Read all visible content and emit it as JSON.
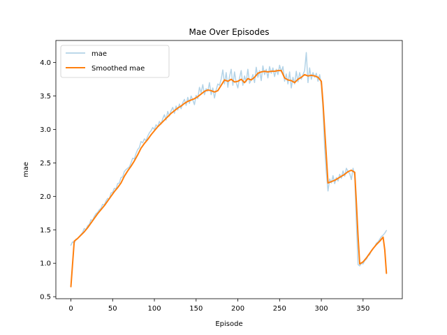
{
  "chart_data": {
    "type": "line",
    "title": "Mae Over Episodes",
    "xlabel": "Episode",
    "ylabel": "mae",
    "xlim": [
      -18,
      397
    ],
    "ylim": [
      0.47,
      4.33
    ],
    "xticks": [
      0,
      50,
      100,
      150,
      200,
      250,
      300,
      350
    ],
    "yticks": [
      0.5,
      1.0,
      1.5,
      2.0,
      2.5,
      3.0,
      3.5,
      4.0
    ],
    "ytick_labels": [
      "0.5",
      "1.0",
      "1.5",
      "2.0",
      "2.5",
      "3.0",
      "3.5",
      "4.0"
    ],
    "grid": false,
    "legend_position": "top-left",
    "series": [
      {
        "name": "mae",
        "color": "#a6cbe3",
        "style": "thin-translucent",
        "points": [
          [
            0,
            1.27
          ],
          [
            2,
            1.32
          ],
          [
            4,
            1.3
          ],
          [
            6,
            1.36
          ],
          [
            8,
            1.37
          ],
          [
            10,
            1.4
          ],
          [
            12,
            1.43
          ],
          [
            14,
            1.46
          ],
          [
            16,
            1.52
          ],
          [
            18,
            1.5
          ],
          [
            20,
            1.56
          ],
          [
            22,
            1.58
          ],
          [
            24,
            1.65
          ],
          [
            26,
            1.64
          ],
          [
            28,
            1.7
          ],
          [
            30,
            1.74
          ],
          [
            32,
            1.76
          ],
          [
            34,
            1.8
          ],
          [
            36,
            1.82
          ],
          [
            38,
            1.88
          ],
          [
            40,
            1.87
          ],
          [
            42,
            1.93
          ],
          [
            44,
            1.97
          ],
          [
            46,
            1.96
          ],
          [
            48,
            2.05
          ],
          [
            50,
            2.06
          ],
          [
            52,
            2.12
          ],
          [
            54,
            2.11
          ],
          [
            56,
            2.19
          ],
          [
            58,
            2.2
          ],
          [
            60,
            2.28
          ],
          [
            62,
            2.29
          ],
          [
            64,
            2.37
          ],
          [
            66,
            2.4
          ],
          [
            68,
            2.42
          ],
          [
            70,
            2.44
          ],
          [
            72,
            2.5
          ],
          [
            74,
            2.57
          ],
          [
            76,
            2.56
          ],
          [
            78,
            2.64
          ],
          [
            80,
            2.7
          ],
          [
            82,
            2.73
          ],
          [
            84,
            2.82
          ],
          [
            86,
            2.8
          ],
          [
            88,
            2.86
          ],
          [
            90,
            2.83
          ],
          [
            92,
            2.9
          ],
          [
            94,
            2.95
          ],
          [
            96,
            2.98
          ],
          [
            98,
            3.03
          ],
          [
            100,
            3.0
          ],
          [
            102,
            3.07
          ],
          [
            104,
            3.04
          ],
          [
            106,
            3.12
          ],
          [
            108,
            3.08
          ],
          [
            110,
            3.16
          ],
          [
            112,
            3.22
          ],
          [
            114,
            3.14
          ],
          [
            116,
            3.27
          ],
          [
            118,
            3.2
          ],
          [
            120,
            3.28
          ],
          [
            122,
            3.33
          ],
          [
            124,
            3.24
          ],
          [
            126,
            3.35
          ],
          [
            128,
            3.29
          ],
          [
            130,
            3.38
          ],
          [
            132,
            3.31
          ],
          [
            134,
            3.4
          ],
          [
            136,
            3.45
          ],
          [
            138,
            3.36
          ],
          [
            140,
            3.48
          ],
          [
            142,
            3.39
          ],
          [
            144,
            3.5
          ],
          [
            146,
            3.44
          ],
          [
            148,
            3.37
          ],
          [
            150,
            3.51
          ],
          [
            152,
            3.46
          ],
          [
            154,
            3.63
          ],
          [
            156,
            3.55
          ],
          [
            158,
            3.67
          ],
          [
            160,
            3.52
          ],
          [
            162,
            3.61
          ],
          [
            164,
            3.57
          ],
          [
            166,
            3.7
          ],
          [
            168,
            3.52
          ],
          [
            170,
            3.62
          ],
          [
            172,
            3.47
          ],
          [
            174,
            3.59
          ],
          [
            176,
            3.68
          ],
          [
            178,
            3.66
          ],
          [
            180,
            3.75
          ],
          [
            182,
            3.89
          ],
          [
            184,
            3.68
          ],
          [
            186,
            3.85
          ],
          [
            188,
            3.63
          ],
          [
            190,
            3.79
          ],
          [
            192,
            3.9
          ],
          [
            194,
            3.66
          ],
          [
            196,
            3.86
          ],
          [
            198,
            3.7
          ],
          [
            200,
            3.62
          ],
          [
            202,
            3.77
          ],
          [
            204,
            3.88
          ],
          [
            206,
            3.66
          ],
          [
            208,
            3.8
          ],
          [
            210,
            3.71
          ],
          [
            212,
            3.9
          ],
          [
            214,
            3.69
          ],
          [
            216,
            3.74
          ],
          [
            218,
            3.82
          ],
          [
            220,
            3.7
          ],
          [
            222,
            3.93
          ],
          [
            224,
            3.78
          ],
          [
            226,
            3.88
          ],
          [
            228,
            3.73
          ],
          [
            230,
            3.95
          ],
          [
            232,
            3.82
          ],
          [
            234,
            3.9
          ],
          [
            236,
            3.77
          ],
          [
            238,
            3.94
          ],
          [
            240,
            3.84
          ],
          [
            242,
            3.92
          ],
          [
            244,
            3.79
          ],
          [
            246,
            3.9
          ],
          [
            248,
            3.82
          ],
          [
            250,
            3.96
          ],
          [
            252,
            3.86
          ],
          [
            254,
            3.94
          ],
          [
            256,
            3.72
          ],
          [
            258,
            3.83
          ],
          [
            260,
            3.68
          ],
          [
            262,
            3.86
          ],
          [
            264,
            3.62
          ],
          [
            266,
            3.78
          ],
          [
            268,
            3.68
          ],
          [
            270,
            3.87
          ],
          [
            272,
            3.71
          ],
          [
            274,
            3.85
          ],
          [
            276,
            3.75
          ],
          [
            278,
            3.82
          ],
          [
            280,
            3.88
          ],
          [
            282,
            4.15
          ],
          [
            284,
            3.7
          ],
          [
            286,
            3.92
          ],
          [
            288,
            3.75
          ],
          [
            290,
            3.85
          ],
          [
            292,
            3.78
          ],
          [
            294,
            3.84
          ],
          [
            296,
            3.72
          ],
          [
            298,
            3.82
          ],
          [
            300,
            3.66
          ],
          [
            302,
            3.3
          ],
          [
            304,
            2.72
          ],
          [
            306,
            2.35
          ],
          [
            308,
            2.08
          ],
          [
            310,
            2.26
          ],
          [
            312,
            2.2
          ],
          [
            314,
            2.31
          ],
          [
            316,
            2.19
          ],
          [
            318,
            2.28
          ],
          [
            320,
            2.23
          ],
          [
            322,
            2.33
          ],
          [
            324,
            2.27
          ],
          [
            326,
            2.38
          ],
          [
            328,
            2.3
          ],
          [
            330,
            2.42
          ],
          [
            332,
            2.37
          ],
          [
            334,
            2.34
          ],
          [
            336,
            2.25
          ],
          [
            338,
            2.42
          ],
          [
            340,
            2.3
          ],
          [
            342,
            1.6
          ],
          [
            344,
            0.98
          ],
          [
            346,
            0.96
          ],
          [
            348,
            1.0
          ],
          [
            350,
            0.99
          ],
          [
            352,
            1.04
          ],
          [
            354,
            1.06
          ],
          [
            356,
            1.11
          ],
          [
            358,
            1.13
          ],
          [
            360,
            1.19
          ],
          [
            362,
            1.22
          ],
          [
            364,
            1.25
          ],
          [
            366,
            1.3
          ],
          [
            368,
            1.32
          ],
          [
            370,
            1.36
          ],
          [
            372,
            1.4
          ],
          [
            374,
            1.42
          ],
          [
            376,
            1.45
          ],
          [
            378,
            1.49
          ]
        ]
      },
      {
        "name": "Smoothed mae",
        "color": "#ff7f0e",
        "style": "thick",
        "points": [
          [
            0,
            0.65
          ],
          [
            4,
            1.33
          ],
          [
            8,
            1.37
          ],
          [
            12,
            1.42
          ],
          [
            16,
            1.47
          ],
          [
            20,
            1.53
          ],
          [
            24,
            1.6
          ],
          [
            28,
            1.67
          ],
          [
            32,
            1.74
          ],
          [
            36,
            1.8
          ],
          [
            40,
            1.86
          ],
          [
            44,
            1.93
          ],
          [
            48,
            2.0
          ],
          [
            52,
            2.07
          ],
          [
            56,
            2.13
          ],
          [
            60,
            2.2
          ],
          [
            64,
            2.3
          ],
          [
            68,
            2.38
          ],
          [
            72,
            2.45
          ],
          [
            76,
            2.53
          ],
          [
            80,
            2.62
          ],
          [
            84,
            2.72
          ],
          [
            88,
            2.79
          ],
          [
            92,
            2.85
          ],
          [
            96,
            2.92
          ],
          [
            100,
            2.98
          ],
          [
            104,
            3.04
          ],
          [
            108,
            3.09
          ],
          [
            112,
            3.14
          ],
          [
            116,
            3.19
          ],
          [
            120,
            3.24
          ],
          [
            124,
            3.28
          ],
          [
            128,
            3.32
          ],
          [
            132,
            3.35
          ],
          [
            136,
            3.39
          ],
          [
            140,
            3.42
          ],
          [
            144,
            3.44
          ],
          [
            148,
            3.46
          ],
          [
            152,
            3.49
          ],
          [
            156,
            3.53
          ],
          [
            160,
            3.57
          ],
          [
            164,
            3.59
          ],
          [
            168,
            3.58
          ],
          [
            172,
            3.56
          ],
          [
            176,
            3.58
          ],
          [
            180,
            3.66
          ],
          [
            184,
            3.74
          ],
          [
            188,
            3.72
          ],
          [
            192,
            3.75
          ],
          [
            196,
            3.71
          ],
          [
            200,
            3.72
          ],
          [
            204,
            3.75
          ],
          [
            208,
            3.7
          ],
          [
            212,
            3.76
          ],
          [
            216,
            3.74
          ],
          [
            220,
            3.78
          ],
          [
            224,
            3.84
          ],
          [
            228,
            3.86
          ],
          [
            232,
            3.87
          ],
          [
            236,
            3.86
          ],
          [
            240,
            3.87
          ],
          [
            244,
            3.87
          ],
          [
            248,
            3.88
          ],
          [
            252,
            3.88
          ],
          [
            256,
            3.77
          ],
          [
            260,
            3.74
          ],
          [
            264,
            3.73
          ],
          [
            268,
            3.7
          ],
          [
            272,
            3.75
          ],
          [
            276,
            3.78
          ],
          [
            280,
            3.82
          ],
          [
            284,
            3.8
          ],
          [
            288,
            3.81
          ],
          [
            292,
            3.8
          ],
          [
            296,
            3.78
          ],
          [
            300,
            3.72
          ],
          [
            302,
            3.4
          ],
          [
            304,
            3.0
          ],
          [
            306,
            2.6
          ],
          [
            308,
            2.2
          ],
          [
            312,
            2.22
          ],
          [
            316,
            2.24
          ],
          [
            320,
            2.27
          ],
          [
            324,
            2.3
          ],
          [
            328,
            2.33
          ],
          [
            332,
            2.37
          ],
          [
            336,
            2.39
          ],
          [
            340,
            2.36
          ],
          [
            342,
            1.9
          ],
          [
            344,
            1.4
          ],
          [
            346,
            0.99
          ],
          [
            350,
            1.02
          ],
          [
            354,
            1.08
          ],
          [
            358,
            1.15
          ],
          [
            362,
            1.22
          ],
          [
            366,
            1.28
          ],
          [
            370,
            1.33
          ],
          [
            374,
            1.39
          ],
          [
            376,
            1.2
          ],
          [
            378,
            0.85
          ]
        ]
      }
    ]
  }
}
